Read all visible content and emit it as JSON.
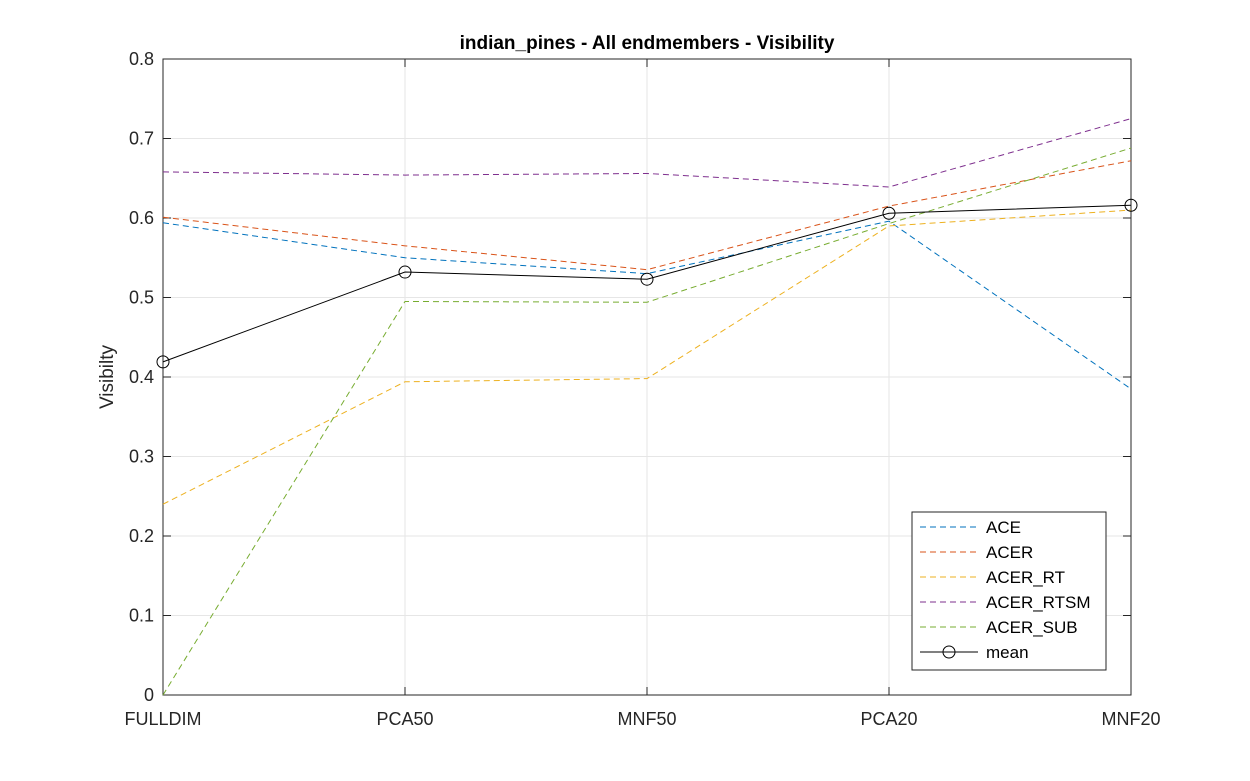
{
  "chart_data": {
    "type": "line",
    "title": "indian_pines - All endmembers - Visibility",
    "xlabel": "",
    "ylabel": "Visibilty",
    "categories": [
      "FULLDIM",
      "PCA50",
      "MNF50",
      "PCA20",
      "MNF20"
    ],
    "ylim": [
      0,
      0.8
    ],
    "yticks": [
      0,
      0.1,
      0.2,
      0.3,
      0.4,
      0.5,
      0.6,
      0.7,
      0.8
    ],
    "ytick_labels": [
      "0",
      "0.1",
      "0.2",
      "0.3",
      "0.4",
      "0.5",
      "0.6",
      "0.7",
      "0.8"
    ],
    "grid": true,
    "legend_position": "bottom-right",
    "series": [
      {
        "name": "ACE",
        "color": "#0072BD",
        "style": "dashed",
        "marker": "none",
        "values": [
          0.594,
          0.55,
          0.53,
          0.596,
          0.385
        ]
      },
      {
        "name": "ACER",
        "color": "#D95319",
        "style": "dashed",
        "marker": "none",
        "values": [
          0.601,
          0.565,
          0.535,
          0.615,
          0.672
        ]
      },
      {
        "name": "ACER_RT",
        "color": "#EDB120",
        "style": "dashed",
        "marker": "none",
        "values": [
          0.24,
          0.394,
          0.398,
          0.59,
          0.61
        ]
      },
      {
        "name": "ACER_RTSM",
        "color": "#7E2F8E",
        "style": "dashed",
        "marker": "none",
        "values": [
          0.658,
          0.654,
          0.656,
          0.639,
          0.725
        ]
      },
      {
        "name": "ACER_SUB",
        "color": "#77AC30",
        "style": "dashed",
        "marker": "none",
        "values": [
          0.0,
          0.495,
          0.494,
          0.593,
          0.688
        ]
      },
      {
        "name": "mean",
        "color": "#000000",
        "style": "solid",
        "marker": "circle",
        "values": [
          0.419,
          0.532,
          0.523,
          0.606,
          0.616
        ]
      }
    ]
  }
}
